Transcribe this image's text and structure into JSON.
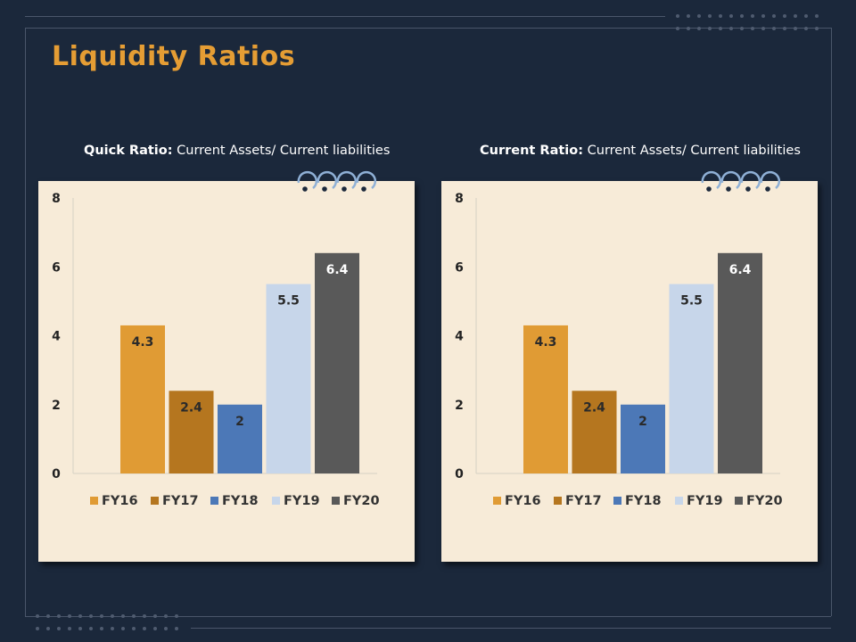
{
  "title": "Liquidity Ratios",
  "colors": {
    "background": "#1b283b",
    "title": "#e59d34",
    "card": "#f7ebd8",
    "FY16": "#e09b34",
    "FY17": "#b5761f",
    "FY18": "#4c78b7",
    "FY19": "#c7d6ea",
    "FY20": "#595959"
  },
  "charts": [
    {
      "caption_bold": "Quick Ratio:",
      "caption_text": "Current Assets/ Current liabilities"
    },
    {
      "caption_bold": "Current Ratio:",
      "caption_text": "Current Assets/ Current liabilities"
    }
  ],
  "chart_data": [
    {
      "type": "bar",
      "title": "Quick Ratio: Current Assets/ Current liabilities",
      "categories": [
        "FY16",
        "FY17",
        "FY18",
        "FY19",
        "FY20"
      ],
      "values": [
        4.3,
        2.4,
        2,
        5.5,
        6.4
      ],
      "value_labels": [
        "4.3",
        "2.4",
        "2",
        "5.5",
        "6.4"
      ],
      "ylim": [
        0,
        8
      ],
      "yticks": [
        "0",
        "2",
        "4",
        "6",
        "8"
      ],
      "grid": false,
      "legend": "bottom"
    },
    {
      "type": "bar",
      "title": "Current Ratio: Current Assets/ Current liabilities",
      "categories": [
        "FY16",
        "FY17",
        "FY18",
        "FY19",
        "FY20"
      ],
      "values": [
        4.3,
        2.4,
        2,
        5.5,
        6.4
      ],
      "value_labels": [
        "4.3",
        "2.4",
        "2",
        "5.5",
        "6.4"
      ],
      "ylim": [
        0,
        8
      ],
      "yticks": [
        "0",
        "2",
        "4",
        "6",
        "8"
      ],
      "grid": false,
      "legend": "bottom"
    }
  ]
}
